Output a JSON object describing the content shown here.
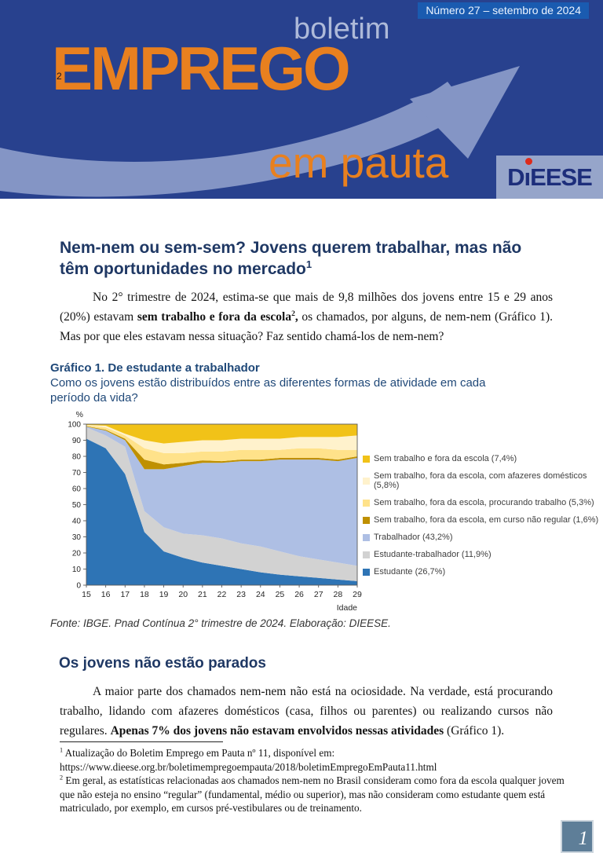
{
  "header": {
    "issue_label": "Número 27 – setembro de 2024",
    "pretitle": "boletim",
    "title": "EMPREGO",
    "title_note": "2",
    "subtitle": "em pauta",
    "logo": {
      "d": "D",
      "i": "ı",
      "rest": "EESE"
    },
    "colors": {
      "bg": "#28418E",
      "issue_box": "#1A5BB0",
      "orange": "#E8801F",
      "swoosh": "#8495C5",
      "pretitle": "#AEBAD9",
      "logo_box": "#96A5CA",
      "logo_text": "#1D2E7B",
      "logo_dot": "#DD2B1C"
    }
  },
  "article": {
    "title": "Nem-nem ou sem-sem? Jovens querem trabalhar, mas não têm oportunidades no mercado",
    "title_note": "1",
    "p1": {
      "t1": "No 2° trimestre de 2024, estima-se que mais de 9,8 milhões dos jovens entre 15 e 29 anos (20%) estavam ",
      "b1": "sem trabalho e fora da escola",
      "sup": "2",
      "b2": ",",
      "t2": " os chamados, por alguns, de nem-nem (Gráfico 1). Mas por que eles estavam nessa situação? Faz sentido chamá-los de nem-nem?"
    },
    "section2_title": "Os jovens não estão parados",
    "p2": {
      "t1": "A maior parte dos chamados nem-nem não está na ociosidade. Na verdade, está procurando trabalho, lidando com afazeres domésticos (casa, filhos ou parentes) ou realizando cursos não regulares. ",
      "b1": "Apenas 7% dos jovens não estavam envolvidos nessas atividades",
      "t2": " (Gráfico 1)."
    }
  },
  "chart": {
    "heading": "Gráfico 1. De estudante a trabalhador",
    "subheading": "Como os jovens estão distribuídos entre as diferentes formas de atividade em cada período da vida?",
    "source": "Fonte: IBGE. Pnad Contínua 2° trimestre de 2024. Elaboração: DIEESE."
  },
  "chart_data": {
    "type": "area",
    "stacked": true,
    "percent_total": true,
    "x": [
      15,
      16,
      17,
      18,
      19,
      20,
      21,
      22,
      23,
      24,
      25,
      26,
      27,
      28,
      29
    ],
    "xlabel": "Idade",
    "ylabel": "%",
    "ylim": [
      0,
      100
    ],
    "ytick_step": 10,
    "legend_position": "right",
    "grid": false,
    "series": [
      {
        "id": "estudante",
        "name": "Estudante (26,7%)",
        "color": "#2E74B5",
        "values": [
          91,
          85,
          69,
          33,
          21,
          17,
          14,
          12,
          10,
          8,
          6.5,
          5.5,
          4.5,
          3.5,
          2.5
        ]
      },
      {
        "id": "estudante-trabalhador",
        "name": "Estudante-trabalhador (11,9%)",
        "color": "#D2D2D2",
        "values": [
          7,
          8,
          17,
          13,
          15,
          15,
          17,
          17,
          16,
          16,
          14.5,
          12.5,
          11.5,
          10.5,
          9.5
        ]
      },
      {
        "id": "trabalhador",
        "name": "Trabalhador (43,2%)",
        "color": "#AEBFE4",
        "values": [
          0.5,
          3,
          4,
          26,
          36,
          42,
          45,
          47,
          51,
          53,
          57,
          60,
          62,
          63,
          67
        ]
      },
      {
        "id": "curso-nao-regular",
        "name": "Sem trabalho, fora da escola, em curso não regular (1,6%)",
        "color": "#BF9000",
        "values": [
          0.3,
          0.5,
          1,
          6,
          3,
          2,
          1.5,
          1,
          1,
          1,
          1,
          1,
          1,
          1,
          1
        ]
      },
      {
        "id": "procurando-trabalho",
        "name": "Sem trabalho, fora da escola, procurando trabalho (5,3%)",
        "color": "#FFE28A",
        "values": [
          0.5,
          1.5,
          2,
          7,
          7,
          6,
          5.5,
          6,
          6,
          6,
          5,
          6,
          6,
          6,
          4
        ]
      },
      {
        "id": "afazeres-domesticos",
        "name": "Sem trabalho, fora da escola, com afazeres domésticos (5,8%)",
        "color": "#FFF2CC",
        "values": [
          0.2,
          1,
          1,
          5,
          6,
          7,
          7,
          7,
          7,
          7,
          7,
          7,
          7,
          8,
          9
        ]
      },
      {
        "id": "sem-trabalho-fora-escola",
        "name": "Sem trabalho e fora da escola (7,4%)",
        "color": "#F1C218",
        "values": [
          0.5,
          1,
          6,
          10,
          12,
          11,
          10,
          10,
          9,
          9,
          9,
          8,
          8,
          8,
          7
        ]
      }
    ]
  },
  "footnotes": {
    "fn1": {
      "marker": "1",
      "text": " Atualização do Boletim Emprego em Pauta nº 11, disponível em:",
      "url": "https://www.dieese.org.br/boletimempregoempauta/2018/boletimEmpregoEmPauta11.html"
    },
    "fn2": {
      "marker": "2",
      "text": " Em geral, as estatísticas relacionadas aos chamados nem-nem no Brasil consideram como fora da escola qualquer jovem que não esteja no ensino “regular” (fundamental, médio ou superior), mas não consideram como estudante quem está matriculado, por exemplo, em cursos pré-vestibulares ou de treinamento."
    }
  },
  "footer": {
    "page_number": "1"
  }
}
